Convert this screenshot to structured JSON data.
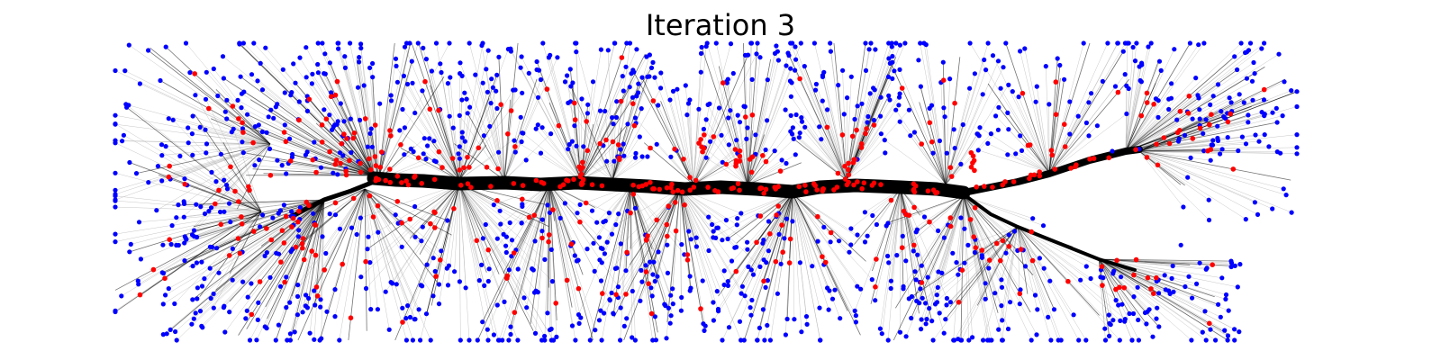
{
  "title": "Iteration 3",
  "colors": {
    "background": "#ffffff",
    "trunk": "#000000",
    "branch": "#000000",
    "edge": "#b0b0b0",
    "leaf_node": "#0000ff",
    "path_node": "#ff0000"
  },
  "node_counts": {
    "blue": 1200,
    "red": 320
  }
}
